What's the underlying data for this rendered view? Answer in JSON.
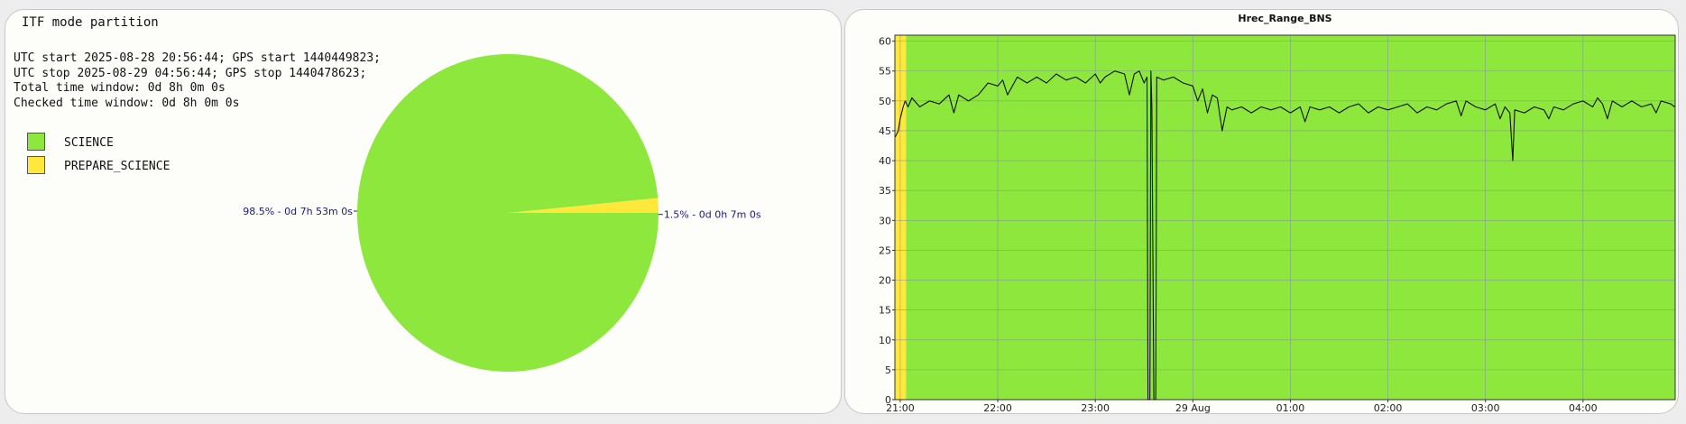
{
  "left_panel": {
    "title": "ITF mode partition",
    "info_lines": [
      "UTC start 2025-08-28 20:56:44; GPS start 1440449823;",
      "UTC stop 2025-08-29 04:56:44; GPS stop 1440478623;",
      "Total time window: 0d 8h 0m 0s",
      "Checked time window: 0d 8h 0m 0s"
    ],
    "legend": [
      {
        "label": "SCIENCE",
        "color": "#8de73c"
      },
      {
        "label": "PREPARE_SCIENCE",
        "color": "#ffe83a"
      }
    ]
  },
  "chart_data": [
    {
      "type": "pie",
      "slices": [
        {
          "label": "SCIENCE",
          "value": 98.5,
          "text": "98.5% - 0d 7h 53m 0s",
          "color": "#8de73c"
        },
        {
          "label": "PREPARE_SCIENCE",
          "value": 1.5,
          "text": "1.5% - 0d 0h 7m 0s",
          "color": "#ffe83a"
        }
      ]
    },
    {
      "type": "line",
      "title": "Hrec_Range_BNS",
      "ylim": [
        0,
        61
      ],
      "y_ticks": [
        0,
        5,
        10,
        15,
        20,
        25,
        30,
        35,
        40,
        45,
        50,
        55,
        60
      ],
      "x_ticks": [
        "21:00",
        "22:00",
        "23:00",
        "29 Aug",
        "01:00",
        "02:00",
        "03:00",
        "04:00"
      ],
      "x_tick_hours": [
        21,
        22,
        23,
        24,
        25,
        26,
        27,
        28
      ],
      "xlim_hours": [
        20.945,
        28.945
      ],
      "grid": true,
      "background_bands": [
        {
          "start": 20.945,
          "end": 21.06,
          "state": "PREPARE_SCIENCE",
          "color": "#ffe83a"
        },
        {
          "start": 21.06,
          "end": 28.945,
          "state": "SCIENCE",
          "color": "#8de73c"
        }
      ],
      "series": [
        {
          "color": "#111111",
          "points": [
            [
              20.95,
              44
            ],
            [
              20.98,
              45
            ],
            [
              21.0,
              47
            ],
            [
              21.03,
              49
            ],
            [
              21.05,
              50
            ],
            [
              21.08,
              49
            ],
            [
              21.12,
              50.5
            ],
            [
              21.2,
              49
            ],
            [
              21.3,
              50
            ],
            [
              21.4,
              49.5
            ],
            [
              21.5,
              51
            ],
            [
              21.55,
              48
            ],
            [
              21.6,
              51
            ],
            [
              21.7,
              50
            ],
            [
              21.8,
              51
            ],
            [
              21.85,
              52
            ],
            [
              21.9,
              53
            ],
            [
              22.0,
              52.5
            ],
            [
              22.05,
              53.5
            ],
            [
              22.1,
              51
            ],
            [
              22.2,
              54
            ],
            [
              22.3,
              53
            ],
            [
              22.4,
              54
            ],
            [
              22.5,
              53
            ],
            [
              22.6,
              54.5
            ],
            [
              22.7,
              53.5
            ],
            [
              22.8,
              54
            ],
            [
              22.9,
              53
            ],
            [
              23.0,
              54.5
            ],
            [
              23.05,
              53
            ],
            [
              23.1,
              54
            ],
            [
              23.2,
              55
            ],
            [
              23.3,
              54.5
            ],
            [
              23.35,
              51
            ],
            [
              23.4,
              54.5
            ],
            [
              23.45,
              55
            ],
            [
              23.5,
              53
            ],
            [
              23.53,
              54
            ],
            [
              23.54,
              0
            ],
            [
              23.56,
              0
            ],
            [
              23.57,
              55
            ],
            [
              23.58,
              49
            ],
            [
              23.6,
              0
            ],
            [
              23.62,
              0
            ],
            [
              23.63,
              54
            ],
            [
              23.7,
              53.5
            ],
            [
              23.8,
              54
            ],
            [
              23.9,
              53
            ],
            [
              24.0,
              52.5
            ],
            [
              24.05,
              50
            ],
            [
              24.1,
              52
            ],
            [
              24.15,
              48
            ],
            [
              24.2,
              51
            ],
            [
              24.25,
              50.5
            ],
            [
              24.3,
              45
            ],
            [
              24.35,
              49
            ],
            [
              24.4,
              48.5
            ],
            [
              24.5,
              49
            ],
            [
              24.6,
              48
            ],
            [
              24.7,
              49
            ],
            [
              24.8,
              48.5
            ],
            [
              24.9,
              49
            ],
            [
              25.0,
              48
            ],
            [
              25.1,
              49
            ],
            [
              25.15,
              46.5
            ],
            [
              25.2,
              49
            ],
            [
              25.3,
              48.5
            ],
            [
              25.4,
              49
            ],
            [
              25.5,
              48
            ],
            [
              25.6,
              49
            ],
            [
              25.7,
              49.5
            ],
            [
              25.8,
              48
            ],
            [
              25.9,
              49
            ],
            [
              26.0,
              48.5
            ],
            [
              26.1,
              49
            ],
            [
              26.2,
              49.5
            ],
            [
              26.3,
              48
            ],
            [
              26.4,
              49
            ],
            [
              26.5,
              48.5
            ],
            [
              26.6,
              49.5
            ],
            [
              26.7,
              50
            ],
            [
              26.75,
              47.5
            ],
            [
              26.8,
              50
            ],
            [
              26.9,
              49
            ],
            [
              27.0,
              48.5
            ],
            [
              27.1,
              49.5
            ],
            [
              27.15,
              47
            ],
            [
              27.2,
              49
            ],
            [
              27.25,
              48
            ],
            [
              27.28,
              40
            ],
            [
              27.3,
              48.5
            ],
            [
              27.4,
              48
            ],
            [
              27.5,
              49
            ],
            [
              27.6,
              48.5
            ],
            [
              27.65,
              47
            ],
            [
              27.7,
              49
            ],
            [
              27.8,
              48.5
            ],
            [
              27.9,
              49.5
            ],
            [
              28.0,
              50
            ],
            [
              28.1,
              49
            ],
            [
              28.15,
              50.5
            ],
            [
              28.2,
              49.5
            ],
            [
              28.25,
              47
            ],
            [
              28.3,
              50
            ],
            [
              28.4,
              49
            ],
            [
              28.5,
              50
            ],
            [
              28.6,
              49
            ],
            [
              28.7,
              49.5
            ],
            [
              28.75,
              48
            ],
            [
              28.8,
              50
            ],
            [
              28.9,
              49.5
            ],
            [
              28.94,
              49
            ]
          ]
        }
      ]
    }
  ]
}
